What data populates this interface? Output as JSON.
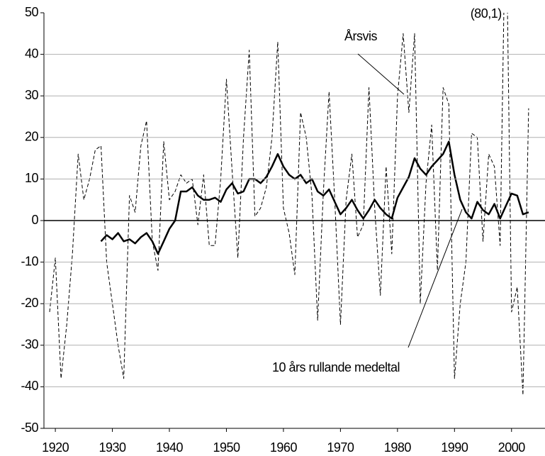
{
  "chart_data": {
    "type": "line",
    "x": [
      1919,
      1920,
      1921,
      1922,
      1923,
      1924,
      1925,
      1926,
      1927,
      1928,
      1929,
      1930,
      1931,
      1932,
      1933,
      1934,
      1935,
      1936,
      1937,
      1938,
      1939,
      1940,
      1941,
      1942,
      1943,
      1944,
      1945,
      1946,
      1947,
      1948,
      1949,
      1950,
      1951,
      1952,
      1953,
      1954,
      1955,
      1956,
      1957,
      1958,
      1959,
      1960,
      1961,
      1962,
      1963,
      1964,
      1965,
      1966,
      1967,
      1968,
      1969,
      1970,
      1971,
      1972,
      1973,
      1974,
      1975,
      1976,
      1977,
      1978,
      1979,
      1980,
      1981,
      1982,
      1983,
      1984,
      1985,
      1986,
      1987,
      1988,
      1989,
      1990,
      1991,
      1992,
      1993,
      1994,
      1995,
      1996,
      1997,
      1998,
      1999,
      2000,
      2001,
      2002,
      2003
    ],
    "series": [
      {
        "name": "Årsvis",
        "color": "#000000",
        "dashed": true,
        "values": [
          -22,
          -9,
          -38,
          -25,
          -8,
          16,
          5,
          10,
          17,
          18,
          -10,
          -20,
          -30,
          -38,
          6,
          2,
          18,
          24,
          -5,
          -12,
          19,
          5,
          7,
          11,
          9,
          10,
          -1,
          11,
          -6,
          -6,
          10,
          34,
          12,
          -9,
          20,
          41,
          1,
          3,
          8,
          20,
          43,
          3,
          -3,
          -13,
          26,
          20,
          6,
          -24,
          7,
          31,
          5,
          -25,
          5,
          16,
          -4,
          -1,
          32,
          3,
          -18,
          13,
          -8,
          30,
          45,
          26,
          45,
          -20,
          9,
          23,
          -12,
          32,
          28,
          -38,
          -20,
          -10,
          21,
          20,
          -5,
          16,
          13,
          -6,
          80.1,
          -22,
          -16,
          -42,
          27
        ],
        "value_labels": [
          null,
          null,
          null,
          null,
          null,
          null,
          null,
          null,
          null,
          null,
          null,
          null,
          null,
          null,
          null,
          null,
          null,
          null,
          null,
          null,
          null,
          null,
          null,
          null,
          null,
          null,
          null,
          null,
          null,
          null,
          null,
          null,
          null,
          null,
          null,
          null,
          null,
          null,
          null,
          null,
          null,
          null,
          null,
          null,
          null,
          null,
          null,
          null,
          null,
          null,
          null,
          null,
          null,
          null,
          null,
          null,
          null,
          null,
          null,
          null,
          null,
          null,
          null,
          null,
          null,
          null,
          null,
          null,
          null,
          null,
          null,
          null,
          null,
          null,
          null,
          null,
          null,
          null,
          null,
          null,
          "(80,1)",
          null,
          null,
          null,
          null
        ]
      },
      {
        "name": "10 års rullande medeltal",
        "color": "#000000",
        "dashed": false,
        "values": [
          null,
          null,
          null,
          null,
          null,
          null,
          null,
          null,
          null,
          -5,
          -3.5,
          -4.5,
          -3,
          -5,
          -4.5,
          -5.5,
          -4,
          -3,
          -5,
          -8,
          -5,
          -2,
          0,
          7,
          7,
          8,
          6,
          5,
          5,
          5.5,
          4.5,
          7.5,
          9,
          6.5,
          7,
          10,
          10,
          9,
          10.5,
          13,
          16,
          13,
          11,
          10,
          11,
          9,
          10,
          7,
          6,
          7.5,
          4.5,
          1.5,
          3,
          5,
          2.5,
          0.5,
          2.5,
          5,
          3,
          1.5,
          0.5,
          5.5,
          8,
          10.5,
          15,
          12.5,
          11,
          13,
          14.5,
          16,
          19,
          11,
          5,
          2,
          0.5,
          4.5,
          2.5,
          1.5,
          4,
          0.5,
          3.5,
          6.5,
          6,
          1.5,
          2
        ]
      }
    ],
    "xlim": [
      1918,
      2005
    ],
    "ylim": [
      -50,
      50
    ],
    "xticks": [
      1920,
      1930,
      1940,
      1950,
      1960,
      1970,
      1980,
      1990,
      2000
    ],
    "yticks": [
      -50,
      -40,
      -30,
      -20,
      -10,
      0,
      10,
      20,
      30,
      40,
      50
    ],
    "grid": true
  }
}
